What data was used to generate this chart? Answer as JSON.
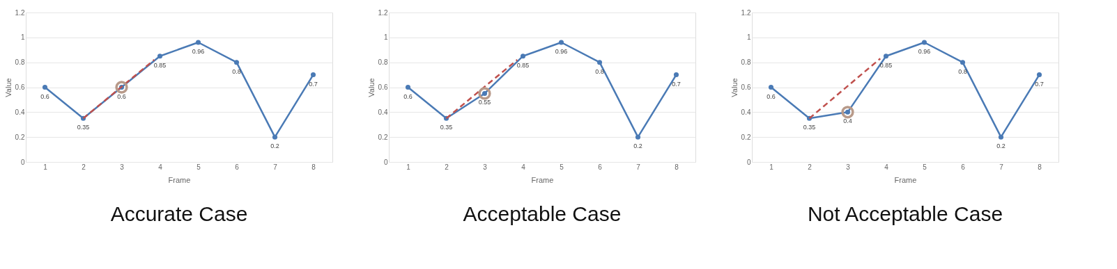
{
  "chart_data": [
    {
      "type": "line",
      "title": "Accurate Case",
      "xlabel": "Frame",
      "ylabel": "Value",
      "x": [
        1,
        2,
        3,
        4,
        5,
        6,
        7,
        8
      ],
      "xlim": [
        0.5,
        8.5
      ],
      "xticks": [
        1,
        2,
        3,
        4,
        5,
        6,
        7,
        8
      ],
      "ylim": [
        0,
        1.2
      ],
      "yticks": [
        0,
        0.2,
        0.4,
        0.6,
        0.8,
        1,
        1.2
      ],
      "grid": "y",
      "marker": "circle",
      "series": [
        {
          "color": "#4a7ab5",
          "values": [
            0.6,
            0.35,
            0.6,
            0.85,
            0.96,
            0.8,
            0.2,
            0.7
          ],
          "value_labels": [
            "0.6",
            "0.35",
            "0.6",
            "0.85",
            "0.96",
            "0.8",
            "0.2",
            "0.7"
          ]
        },
        {
          "type": "line",
          "color": "#c0504d",
          "line_style": "dashed",
          "marker": "none",
          "x": [
            2,
            3.85
          ],
          "values": [
            0.35,
            0.82
          ]
        },
        {
          "type": "scatter",
          "color": "#b89a8a",
          "x": [
            3
          ],
          "values": [
            0.6
          ]
        }
      ]
    },
    {
      "type": "line",
      "title": "Acceptable Case",
      "xlabel": "Frame",
      "ylabel": "Value",
      "x": [
        1,
        2,
        3,
        4,
        5,
        6,
        7,
        8
      ],
      "xlim": [
        0.5,
        8.5
      ],
      "xticks": [
        1,
        2,
        3,
        4,
        5,
        6,
        7,
        8
      ],
      "ylim": [
        0,
        1.2
      ],
      "yticks": [
        0,
        0.2,
        0.4,
        0.6,
        0.8,
        1,
        1.2
      ],
      "grid": "y",
      "marker": "circle",
      "series": [
        {
          "color": "#4a7ab5",
          "values": [
            0.6,
            0.35,
            0.55,
            0.85,
            0.96,
            0.8,
            0.2,
            0.7
          ],
          "value_labels": [
            "0.6",
            "0.35",
            "0.55",
            "0.85",
            "0.96",
            "0.8",
            "0.2",
            "0.7"
          ]
        },
        {
          "type": "line",
          "color": "#c0504d",
          "line_style": "dashed",
          "marker": "none",
          "x": [
            2,
            3.85
          ],
          "values": [
            0.35,
            0.82
          ]
        },
        {
          "type": "scatter",
          "color": "#b89a8a",
          "x": [
            3
          ],
          "values": [
            0.55
          ]
        }
      ]
    },
    {
      "type": "line",
      "title": "Not Acceptable Case",
      "xlabel": "Frame",
      "ylabel": "Value",
      "x": [
        1,
        2,
        3,
        4,
        5,
        6,
        7,
        8
      ],
      "xlim": [
        0.5,
        8.5
      ],
      "xticks": [
        1,
        2,
        3,
        4,
        5,
        6,
        7,
        8
      ],
      "ylim": [
        0,
        1.2
      ],
      "yticks": [
        0,
        0.2,
        0.4,
        0.6,
        0.8,
        1,
        1.2
      ],
      "grid": "y",
      "marker": "circle",
      "series": [
        {
          "color": "#4a7ab5",
          "values": [
            0.6,
            0.35,
            0.4,
            0.85,
            0.96,
            0.8,
            0.2,
            0.7
          ],
          "value_labels": [
            "0.6",
            "0.35",
            "0.4",
            "0.85",
            "0.96",
            "0.8",
            "0.2",
            "0.7"
          ]
        },
        {
          "type": "line",
          "color": "#c0504d",
          "line_style": "dashed",
          "marker": "none",
          "x": [
            2,
            3.85
          ],
          "values": [
            0.35,
            0.83
          ]
        },
        {
          "type": "scatter",
          "color": "#b89a8a",
          "x": [
            3
          ],
          "values": [
            0.4
          ]
        }
      ]
    }
  ]
}
